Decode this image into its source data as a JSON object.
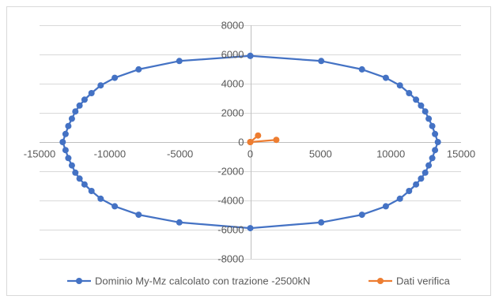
{
  "chart_data": {
    "type": "scatter",
    "title": "",
    "xlabel": "",
    "ylabel": "",
    "xlim": [
      -15000,
      15000
    ],
    "ylim": [
      -8000,
      8000
    ],
    "x_ticks": [
      -15000,
      -10000,
      -5000,
      0,
      5000,
      10000,
      15000
    ],
    "y_ticks": [
      -8000,
      -6000,
      -4000,
      -2000,
      0,
      2000,
      4000,
      6000,
      8000
    ],
    "x_tick_labels": [
      "-15000",
      "-10000",
      "-5000",
      "0",
      "5000",
      "10000",
      "15000"
    ],
    "y_tick_labels": [
      "-8000",
      "-6000",
      "-4000",
      "-2000",
      "0",
      "2000",
      "4000",
      "6000",
      "8000"
    ],
    "grid": "horizontal",
    "legend_position": "bottom",
    "series": [
      {
        "name": "Dominio My-Mz calcolato con trazione -2500kN",
        "color": "#4472C4",
        "marker": "circle",
        "line": true,
        "points": [
          [
            0,
            5900
          ],
          [
            5050,
            5550
          ],
          [
            7950,
            4980
          ],
          [
            9650,
            4400
          ],
          [
            10650,
            3880
          ],
          [
            11300,
            3350
          ],
          [
            11800,
            2900
          ],
          [
            12150,
            2500
          ],
          [
            12450,
            2100
          ],
          [
            12700,
            1600
          ],
          [
            12950,
            1100
          ],
          [
            13150,
            550
          ],
          [
            13350,
            0
          ],
          [
            13150,
            -550
          ],
          [
            12950,
            -1100
          ],
          [
            12700,
            -1600
          ],
          [
            12450,
            -2100
          ],
          [
            12150,
            -2500
          ],
          [
            11800,
            -2900
          ],
          [
            11300,
            -3350
          ],
          [
            10650,
            -3880
          ],
          [
            9650,
            -4400
          ],
          [
            7950,
            -4980
          ],
          [
            5050,
            -5500
          ],
          [
            0,
            -5900
          ],
          [
            -5050,
            -5500
          ],
          [
            -7950,
            -4980
          ],
          [
            -9650,
            -4400
          ],
          [
            -10650,
            -3880
          ],
          [
            -11300,
            -3350
          ],
          [
            -11800,
            -2900
          ],
          [
            -12150,
            -2500
          ],
          [
            -12450,
            -2100
          ],
          [
            -12700,
            -1600
          ],
          [
            -12950,
            -1100
          ],
          [
            -13150,
            -550
          ],
          [
            -13350,
            0
          ],
          [
            -13150,
            550
          ],
          [
            -12950,
            1100
          ],
          [
            -12700,
            1600
          ],
          [
            -12450,
            2100
          ],
          [
            -12150,
            2500
          ],
          [
            -11800,
            2900
          ],
          [
            -11300,
            3350
          ],
          [
            -10650,
            3880
          ],
          [
            -9650,
            4400
          ],
          [
            -7950,
            4980
          ],
          [
            -5050,
            5550
          ],
          [
            0,
            5900
          ]
        ]
      },
      {
        "name": "Dati verifica",
        "color": "#ED7D31",
        "marker": "circle",
        "line": true,
        "points": [
          [
            0,
            0
          ],
          [
            550,
            450
          ],
          [
            0,
            0
          ],
          [
            1850,
            150
          ]
        ]
      }
    ]
  }
}
